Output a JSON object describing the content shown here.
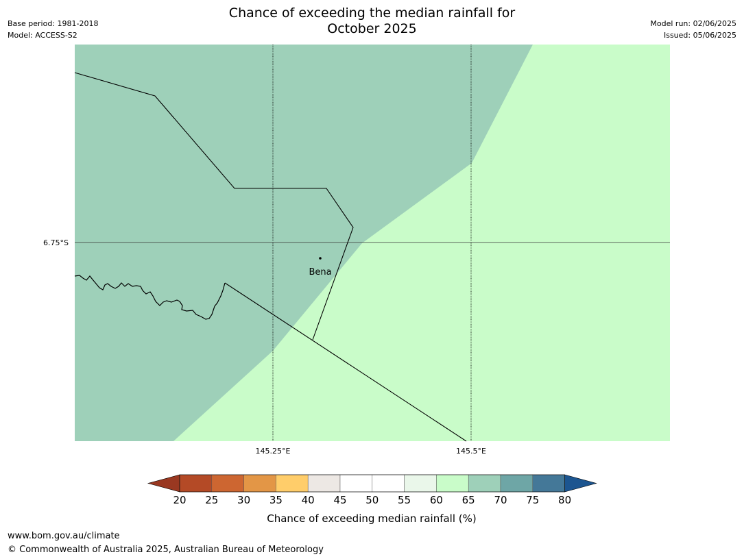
{
  "header": {
    "title_line1": "Chance of exceeding the median rainfall for",
    "title_line2": "October 2025",
    "base_period": "Base period: 1981-2018",
    "model": "Model: ACCESS-S2",
    "model_run": "Model run: 02/06/2025",
    "issued": "Issued: 05/06/2025"
  },
  "map": {
    "place_label": "Bena",
    "lat_label": "6.75°S",
    "lon_labels": [
      "145.25°E",
      "145.5°E"
    ],
    "region_colors": {
      "band_65_70": "#9ed0b9",
      "band_60_65": "#c9fcc9"
    }
  },
  "colorbar": {
    "ticks": [
      "20",
      "25",
      "30",
      "35",
      "40",
      "45",
      "50",
      "55",
      "60",
      "65",
      "70",
      "75",
      "80"
    ],
    "colors": [
      "#9a3821",
      "#b44a26",
      "#cd6631",
      "#e39646",
      "#ffcd6a",
      "#ede8e4",
      "#ffffff",
      "#ffffff",
      "#eaf7ea",
      "#c9fcc9",
      "#9ed0b9",
      "#6ea6a6",
      "#447898",
      "#1c5590"
    ],
    "label": "Chance of exceeding median rainfall (%)"
  },
  "footer": {
    "url": "www.bom.gov.au/climate",
    "copyright": "© Commonwealth of Australia 2025, Australian Bureau of Meteorology"
  }
}
